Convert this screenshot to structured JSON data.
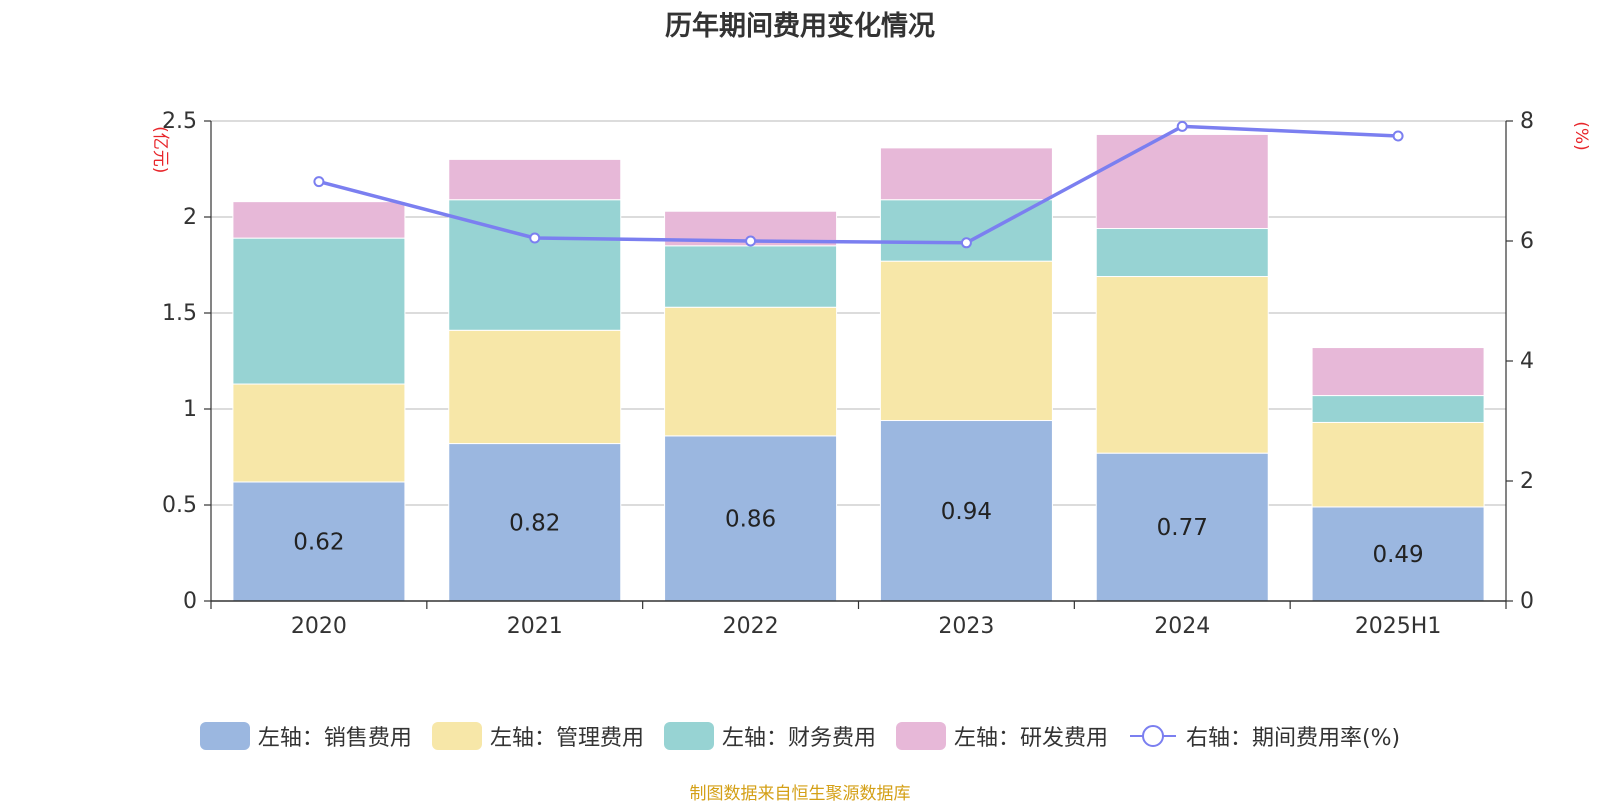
{
  "chart_data": {
    "type": "bar",
    "title": "历年期间费用变化情况",
    "categories": [
      "2020",
      "2021",
      "2022",
      "2023",
      "2024",
      "2025H1"
    ],
    "series": [
      {
        "name": "左轴：销售费用",
        "axis": "left",
        "color": "#9bb7e0",
        "values": [
          0.62,
          0.82,
          0.86,
          0.94,
          0.77,
          0.49
        ],
        "show_labels": true
      },
      {
        "name": "左轴：管理费用",
        "axis": "left",
        "color": "#f7e7a8",
        "values": [
          0.51,
          0.59,
          0.67,
          0.83,
          0.92,
          0.44
        ]
      },
      {
        "name": "左轴：财务费用",
        "axis": "left",
        "color": "#97d3d3",
        "values": [
          0.76,
          0.68,
          0.32,
          0.32,
          0.25,
          0.14
        ]
      },
      {
        "name": "左轴：研发费用",
        "axis": "left",
        "color": "#e7b8d8",
        "values": [
          0.19,
          0.21,
          0.18,
          0.27,
          0.49,
          0.25
        ]
      }
    ],
    "line_series": {
      "name": "右轴：期间费用率(%)",
      "axis": "right",
      "color": "#7b7ff0",
      "values": [
        6.99,
        6.05,
        6.0,
        5.97,
        7.91,
        7.75
      ]
    },
    "y_left": {
      "label": "(亿元)",
      "ylim": [
        0,
        2.5
      ],
      "ticks": [
        "0",
        "0.5",
        "1",
        "1.5",
        "2",
        "2.5"
      ]
    },
    "y_right": {
      "label": "(%)",
      "ylim": [
        0,
        8
      ],
      "ticks": [
        "0",
        "2",
        "4",
        "6",
        "8"
      ]
    },
    "grid": true,
    "legend_position": "bottom"
  },
  "source": "制图数据来自恒生聚源数据库"
}
